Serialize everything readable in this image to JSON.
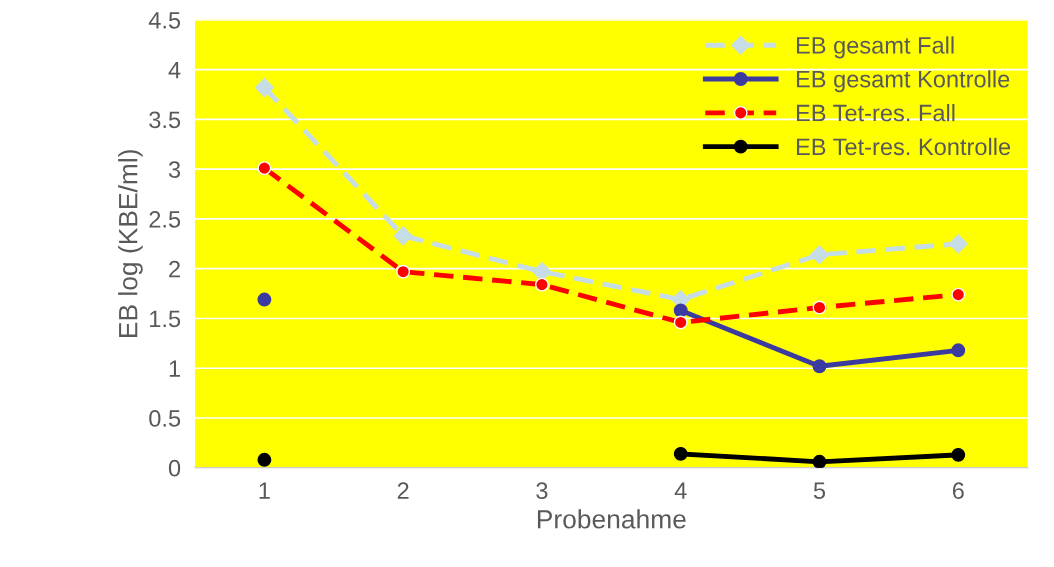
{
  "chart_data": {
    "type": "line",
    "xlabel": "Probenahme",
    "ylabel": "EB log (KBE/ml)",
    "categories": [
      "1",
      "2",
      "3",
      "4",
      "5",
      "6"
    ],
    "series": [
      {
        "name": "EB gesamt Fall",
        "color": "#c6dde6",
        "line_style": "dashed",
        "marker": "diamond",
        "values": [
          3.82,
          2.33,
          1.97,
          1.69,
          2.14,
          2.25
        ]
      },
      {
        "name": "EB gesamt Kontrolle",
        "color": "#3a3aa0",
        "line_style": "solid",
        "marker": "circle",
        "values": [
          1.69,
          null,
          null,
          1.58,
          1.02,
          1.18
        ]
      },
      {
        "name": "EB Tet-res. Fall",
        "color": "#ff0000",
        "line_style": "dashed",
        "marker": "circle",
        "values": [
          3.01,
          1.97,
          1.84,
          1.46,
          1.61,
          1.74
        ]
      },
      {
        "name": "EB Tet-res. Kontrolle",
        "color": "#000000",
        "line_style": "solid",
        "marker": "circle",
        "values": [
          0.08,
          null,
          null,
          0.14,
          0.06,
          0.13
        ]
      }
    ],
    "ylim": [
      0,
      4.5
    ],
    "yticks": [
      0,
      0.5,
      1,
      1.5,
      2,
      2.5,
      3,
      3.5,
      4,
      4.5
    ],
    "grid": "y",
    "legend": "top right"
  }
}
